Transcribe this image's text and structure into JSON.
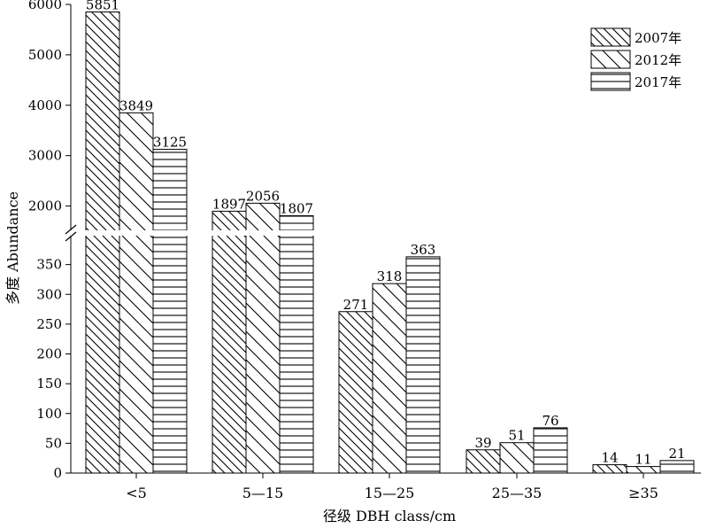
{
  "chart_data": {
    "type": "bar",
    "title": "",
    "xlabel": "径级 DBH class/cm",
    "ylabel": "多度 Abundance",
    "categories": [
      "<5",
      "5—15",
      "15—25",
      "25—35",
      "≥35"
    ],
    "series": [
      {
        "name": "2007年",
        "values": [
          5851,
          1897,
          271,
          39,
          14
        ]
      },
      {
        "name": "2012年",
        "values": [
          3849,
          2056,
          318,
          51,
          11
        ]
      },
      {
        "name": "2017年",
        "values": [
          3125,
          1807,
          363,
          76,
          21
        ]
      }
    ],
    "y_lower": {
      "range": [
        0,
        400
      ],
      "ticks": [
        "0",
        "50",
        "100",
        "150",
        "200",
        "250",
        "300",
        "350"
      ]
    },
    "y_upper": {
      "range": [
        1500,
        6000
      ],
      "ticks": [
        "2000",
        "3000",
        "4000",
        "5000",
        "6000"
      ]
    },
    "axis_break": true,
    "grid": false,
    "legend_position": "top-right",
    "colors": {
      "bar_fill": "#ffffff",
      "stroke": "#000000"
    }
  }
}
